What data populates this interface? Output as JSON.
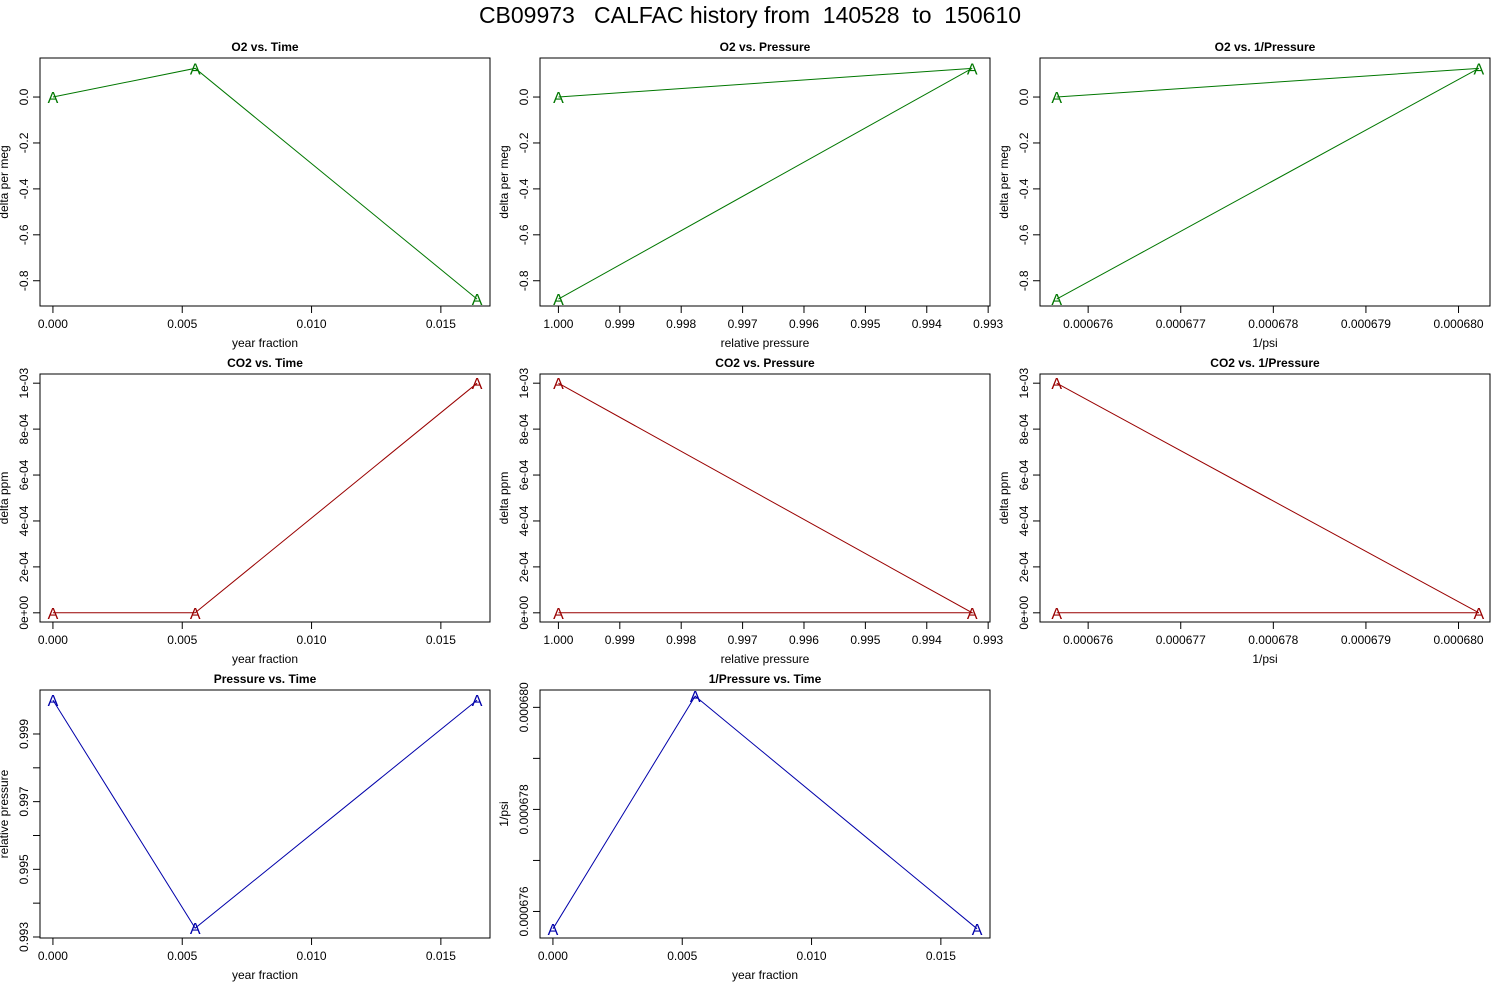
{
  "title": "CB09973   CALFAC history from  140528  to  150610",
  "colors": {
    "o2": "#007700",
    "co2": "#990000",
    "pressure": "#0000aa",
    "axis": "#000000"
  },
  "marker_symbol": "A",
  "chart_data": [
    {
      "id": "o2-time",
      "type": "line",
      "title": "O2 vs. Time",
      "xlabel": "year fraction",
      "ylabel": "delta per meg",
      "color_key": "o2",
      "xlim": [
        -0.0005,
        0.0169
      ],
      "ylim": [
        -0.91,
        0.17
      ],
      "x": [
        0.0,
        0.0055,
        0.0164
      ],
      "y": [
        0.0,
        0.125,
        -0.88
      ],
      "xticks": [
        0.0,
        0.005,
        0.01,
        0.015
      ],
      "xtick_labels": [
        "0.000",
        "0.005",
        "0.010",
        "0.015"
      ],
      "yticks": [
        -0.8,
        -0.6,
        -0.4,
        -0.2,
        0.0
      ],
      "ytick_labels": [
        "-0.8",
        "-0.6",
        "-0.4",
        "-0.2",
        "0.0"
      ],
      "grid": false
    },
    {
      "id": "o2-pressure",
      "type": "line",
      "title": "O2 vs. Pressure",
      "xlabel": "relative pressure",
      "ylabel": "delta per meg",
      "color_key": "o2",
      "xlim": [
        1.0003,
        0.99297
      ],
      "ylim": [
        -0.91,
        0.17
      ],
      "x": [
        1.0,
        0.99326,
        1.0
      ],
      "y": [
        0.0,
        0.125,
        -0.88
      ],
      "xticks": [
        1.0,
        0.999,
        0.998,
        0.997,
        0.996,
        0.995,
        0.994,
        0.993
      ],
      "xtick_labels": [
        "1.000",
        "0.999",
        "0.998",
        "0.997",
        "0.996",
        "0.995",
        "0.994",
        "0.993"
      ],
      "yticks": [
        -0.8,
        -0.6,
        -0.4,
        -0.2,
        0.0
      ],
      "ytick_labels": [
        "-0.8",
        "-0.6",
        "-0.4",
        "-0.2",
        "0.0"
      ],
      "grid": false
    },
    {
      "id": "o2-invpressure",
      "type": "line",
      "title": "O2 vs. 1/Pressure",
      "xlabel": "1/psi",
      "ylabel": "delta per meg",
      "color_key": "o2",
      "xlim": [
        0.00067548,
        0.00068034
      ],
      "ylim": [
        -0.91,
        0.17
      ],
      "x": [
        0.00067566,
        0.00068022,
        0.00067566
      ],
      "y": [
        0.0,
        0.125,
        -0.88
      ],
      "xticks": [
        0.000676,
        0.000677,
        0.000678,
        0.000679,
        0.00068
      ],
      "xtick_labels": [
        "0.000676",
        "0.000677",
        "0.000678",
        "0.000679",
        "0.000680"
      ],
      "yticks": [
        -0.8,
        -0.6,
        -0.4,
        -0.2,
        0.0
      ],
      "ytick_labels": [
        "-0.8",
        "-0.6",
        "-0.4",
        "-0.2",
        "0.0"
      ],
      "grid": false
    },
    {
      "id": "co2-time",
      "type": "line",
      "title": "CO2 vs. Time",
      "xlabel": "year fraction",
      "ylabel": "delta ppm",
      "color_key": "co2",
      "xlim": [
        -0.0005,
        0.0169
      ],
      "ylim": [
        -4e-05,
        0.00104
      ],
      "x": [
        0.0,
        0.0055,
        0.0164
      ],
      "y": [
        0.0,
        0.0,
        0.001
      ],
      "xticks": [
        0.0,
        0.005,
        0.01,
        0.015
      ],
      "xtick_labels": [
        "0.000",
        "0.005",
        "0.010",
        "0.015"
      ],
      "yticks": [
        0.0,
        0.0002,
        0.0004,
        0.0006,
        0.0008,
        0.001
      ],
      "ytick_labels": [
        "0e+00",
        "2e-04",
        "4e-04",
        "6e-04",
        "8e-04",
        "1e-03"
      ],
      "grid": false
    },
    {
      "id": "co2-pressure",
      "type": "line",
      "title": "CO2 vs. Pressure",
      "xlabel": "relative pressure",
      "ylabel": "delta ppm",
      "color_key": "co2",
      "xlim": [
        1.0003,
        0.99297
      ],
      "ylim": [
        -4e-05,
        0.00104
      ],
      "x": [
        1.0,
        0.99326,
        1.0
      ],
      "y": [
        0.0,
        0.0,
        0.001
      ],
      "xticks": [
        1.0,
        0.999,
        0.998,
        0.997,
        0.996,
        0.995,
        0.994,
        0.993
      ],
      "xtick_labels": [
        "1.000",
        "0.999",
        "0.998",
        "0.997",
        "0.996",
        "0.995",
        "0.994",
        "0.993"
      ],
      "yticks": [
        0.0,
        0.0002,
        0.0004,
        0.0006,
        0.0008,
        0.001
      ],
      "ytick_labels": [
        "0e+00",
        "2e-04",
        "4e-04",
        "6e-04",
        "8e-04",
        "1e-03"
      ],
      "grid": false
    },
    {
      "id": "co2-invpressure",
      "type": "line",
      "title": "CO2 vs. 1/Pressure",
      "xlabel": "1/psi",
      "ylabel": "delta ppm",
      "color_key": "co2",
      "xlim": [
        0.00067548,
        0.00068034
      ],
      "ylim": [
        -4e-05,
        0.00104
      ],
      "x": [
        0.00067566,
        0.00068022,
        0.00067566
      ],
      "y": [
        0.0,
        0.0,
        0.001
      ],
      "xticks": [
        0.000676,
        0.000677,
        0.000678,
        0.000679,
        0.00068
      ],
      "xtick_labels": [
        "0.000676",
        "0.000677",
        "0.000678",
        "0.000679",
        "0.000680"
      ],
      "yticks": [
        0.0,
        0.0002,
        0.0004,
        0.0006,
        0.0008,
        0.001
      ],
      "ytick_labels": [
        "0e+00",
        "2e-04",
        "4e-04",
        "6e-04",
        "8e-04",
        "1e-03"
      ],
      "grid": false
    },
    {
      "id": "pressure-time",
      "type": "line",
      "title": "Pressure vs. Time",
      "xlabel": "year fraction",
      "ylabel": "relative pressure",
      "color_key": "pressure",
      "xlim": [
        -0.0005,
        0.0169
      ],
      "ylim": [
        0.99297,
        1.0003
      ],
      "x": [
        0.0,
        0.0055,
        0.0164
      ],
      "y": [
        1.0,
        0.99326,
        1.0
      ],
      "xticks": [
        0.0,
        0.005,
        0.01,
        0.015
      ],
      "xtick_labels": [
        "0.000",
        "0.005",
        "0.010",
        "0.015"
      ],
      "yticks": [
        0.993,
        0.994,
        0.995,
        0.996,
        0.997,
        0.998,
        0.999
      ],
      "ytick_labels": [
        "0.993",
        "",
        "0.995",
        "",
        "0.997",
        "",
        "0.999"
      ],
      "grid": false
    },
    {
      "id": "invpressure-time",
      "type": "line",
      "title": "1/Pressure vs. Time",
      "xlabel": "year fraction",
      "ylabel": "1/psi",
      "color_key": "pressure",
      "xlim": [
        -0.0005,
        0.0169
      ],
      "ylim": [
        0.00067548,
        0.00068034
      ],
      "x": [
        0.0,
        0.0055,
        0.0164
      ],
      "y": [
        0.00067566,
        0.00068022,
        0.00067566
      ],
      "xticks": [
        0.0,
        0.005,
        0.01,
        0.015
      ],
      "xtick_labels": [
        "0.000",
        "0.005",
        "0.010",
        "0.015"
      ],
      "yticks": [
        0.000676,
        0.000677,
        0.000678,
        0.000679,
        0.00068
      ],
      "ytick_labels": [
        "0.000676",
        "",
        "0.000678",
        "",
        "0.000680"
      ],
      "grid": false
    }
  ]
}
